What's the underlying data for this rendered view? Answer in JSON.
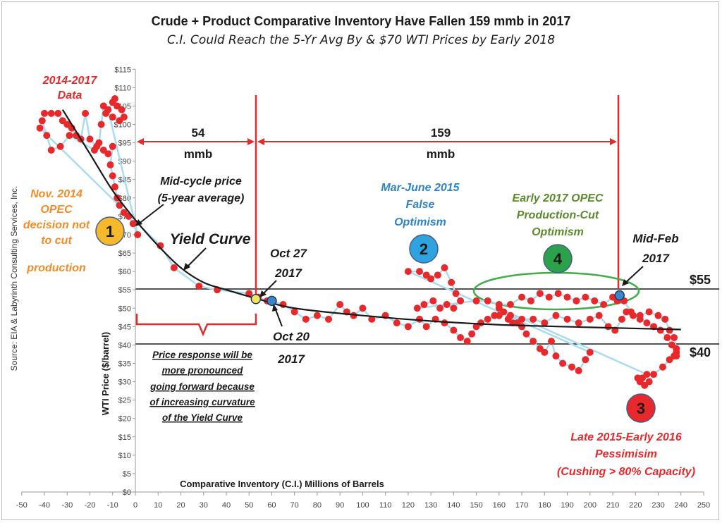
{
  "header": {
    "title": "Crude + Product Comparative Inventory Have Fallen 159 mmb in 2017",
    "subtitle": "C.I. Could Reach the 5-Yr Avg By & $70 WTI Prices by Early 2018"
  },
  "chart_data": {
    "type": "scatter",
    "title": "Crude + Product Comparative Inventory Have Fallen 159 mmb in 2017",
    "subtitle": "C.I. Could Reach the 5-Yr Avg By & $70 WTI Prices by Early 2018",
    "xlabel": "Comparative Inventory (C.I.) Millions of Barrels",
    "ylabel": "WTI Price ($/barrel)",
    "xlim": [
      -50,
      250
    ],
    "ylim": [
      0,
      115
    ],
    "x_ticks": [
      "-50",
      "-40",
      "-30",
      "-20",
      "-10",
      "0",
      "10",
      "20",
      "30",
      "40",
      "50",
      "60",
      "70",
      "80",
      "90",
      "100",
      "110",
      "120",
      "130",
      "140",
      "150",
      "160",
      "170",
      "180",
      "190",
      "200",
      "210",
      "220",
      "230",
      "240",
      "250"
    ],
    "y_ticks": [
      "$0",
      "$5",
      "$10",
      "$15",
      "$20",
      "$25",
      "$30",
      "$35",
      "$40",
      "$45",
      "$50",
      "$55",
      "$60",
      "$65",
      "$70",
      "$75",
      "$80",
      "$85",
      "$90",
      "$95",
      "$100",
      "$105",
      "$110",
      "$115"
    ],
    "grid": false,
    "source": "Source:  EIA & Labyrinth Consulting Services, Inc.",
    "colors": {
      "points": "#e8292b",
      "path": "#a9dcf0",
      "curve": "#1a1a1a",
      "marker_lines": "#e8292b",
      "ellipse": "#3fae4a",
      "blue_marker": "#3a86c8",
      "yellow_marker": "#f7e85a"
    },
    "series": [
      {
        "name": "2014-2017 Data",
        "points": [
          [
            -40,
            103
          ],
          [
            -37,
            103
          ],
          [
            -34,
            103
          ],
          [
            -32,
            101
          ],
          [
            -30,
            100
          ],
          [
            -28,
            99
          ],
          [
            -26,
            97
          ],
          [
            -24,
            96
          ],
          [
            -22,
            103
          ],
          [
            -20,
            96
          ],
          [
            -17,
            94
          ],
          [
            -14,
            93
          ],
          [
            -12,
            92
          ],
          [
            -10,
            94
          ],
          [
            -11,
            89
          ],
          [
            -10,
            86
          ],
          [
            -9,
            83
          ],
          [
            -8,
            80
          ],
          [
            -7,
            78
          ],
          [
            -5,
            76
          ],
          [
            -3,
            75
          ],
          [
            -1,
            73
          ],
          [
            1,
            70
          ],
          [
            -12,
            104
          ],
          [
            -10,
            106
          ],
          [
            -9,
            107
          ],
          [
            -8,
            105
          ],
          [
            -6,
            104
          ],
          [
            -5,
            102
          ],
          [
            -7,
            101
          ],
          [
            -10,
            102
          ],
          [
            -13,
            103
          ],
          [
            -14,
            105
          ],
          [
            -15,
            100
          ],
          [
            -16,
            95
          ],
          [
            -18,
            93
          ],
          [
            -29,
            97
          ],
          [
            -33,
            94
          ],
          [
            -37,
            93
          ],
          [
            -39,
            97
          ],
          [
            -41,
            101
          ],
          [
            -42,
            99
          ],
          [
            11,
            67
          ],
          [
            17,
            61
          ],
          [
            28,
            56
          ],
          [
            36,
            55
          ],
          [
            50,
            54
          ],
          [
            54,
            53
          ],
          [
            58,
            52
          ],
          [
            65,
            51
          ],
          [
            70,
            49
          ],
          [
            75,
            47
          ],
          [
            80,
            48
          ],
          [
            85,
            47
          ],
          [
            90,
            51
          ],
          [
            93,
            49
          ],
          [
            96,
            48
          ],
          [
            100,
            50
          ],
          [
            104,
            47
          ],
          [
            110,
            48
          ],
          [
            115,
            46
          ],
          [
            120,
            45
          ],
          [
            125,
            47
          ],
          [
            128,
            45
          ],
          [
            132,
            47
          ],
          [
            136,
            46
          ],
          [
            140,
            44
          ],
          [
            143,
            42
          ],
          [
            146,
            41
          ],
          [
            148,
            43
          ],
          [
            150,
            45
          ],
          [
            152,
            46
          ],
          [
            155,
            47
          ],
          [
            158,
            48
          ],
          [
            160,
            48
          ],
          [
            162,
            49
          ],
          [
            164,
            47
          ],
          [
            166,
            46
          ],
          [
            168,
            46
          ],
          [
            170,
            45
          ],
          [
            172,
            43
          ],
          [
            175,
            41
          ],
          [
            178,
            39
          ],
          [
            180,
            38
          ],
          [
            183,
            41
          ],
          [
            185,
            37
          ],
          [
            188,
            35
          ],
          [
            192,
            34
          ],
          [
            195,
            33
          ],
          [
            198,
            36
          ],
          [
            200,
            38
          ],
          [
            120,
            60
          ],
          [
            125,
            60
          ],
          [
            128,
            59
          ],
          [
            130,
            58
          ],
          [
            133,
            59
          ],
          [
            136,
            61
          ],
          [
            139,
            57
          ],
          [
            141,
            54
          ],
          [
            143,
            52
          ],
          [
            140,
            50
          ],
          [
            137,
            51
          ],
          [
            134,
            50
          ],
          [
            131,
            52
          ],
          [
            127,
            51
          ],
          [
            124,
            50
          ],
          [
            150,
            52
          ],
          [
            155,
            52
          ],
          [
            160,
            51
          ],
          [
            165,
            51
          ],
          [
            170,
            53
          ],
          [
            174,
            52
          ],
          [
            178,
            54
          ],
          [
            182,
            53
          ],
          [
            186,
            54
          ],
          [
            190,
            53
          ],
          [
            194,
            52
          ],
          [
            198,
            53
          ],
          [
            202,
            52
          ],
          [
            206,
            51
          ],
          [
            210,
            53
          ],
          [
            212,
            52
          ],
          [
            215,
            52
          ],
          [
            218,
            49
          ],
          [
            222,
            47
          ],
          [
            225,
            46
          ],
          [
            228,
            45
          ],
          [
            231,
            44
          ],
          [
            234,
            42
          ],
          [
            236,
            40
          ],
          [
            238,
            38
          ],
          [
            237,
            37
          ],
          [
            235,
            36
          ],
          [
            232,
            34
          ],
          [
            228,
            32
          ],
          [
            226,
            30
          ],
          [
            224,
            29
          ],
          [
            222,
            30
          ],
          [
            221,
            31
          ],
          [
            223,
            31
          ],
          [
            225,
            32
          ],
          [
            160,
            50
          ],
          [
            165,
            48
          ],
          [
            170,
            47
          ],
          [
            175,
            47
          ],
          [
            180,
            46
          ],
          [
            185,
            48
          ],
          [
            190,
            47
          ],
          [
            195,
            46
          ],
          [
            200,
            47
          ],
          [
            204,
            48
          ],
          [
            208,
            45
          ],
          [
            211,
            44
          ],
          [
            214,
            47
          ],
          [
            216,
            49
          ],
          [
            219,
            48
          ],
          [
            222,
            48
          ],
          [
            226,
            49
          ],
          [
            230,
            48
          ],
          [
            233,
            47
          ],
          [
            235,
            44
          ],
          [
            237,
            42
          ],
          [
            238,
            39
          ],
          [
            238,
            37
          ]
        ]
      }
    ],
    "curve": {
      "name": "Mid-cycle price (5-year average)",
      "label": "Yield Curve",
      "points": [
        [
          -32,
          104
        ],
        [
          -20,
          92
        ],
        [
          -10,
          82
        ],
        [
          0,
          74
        ],
        [
          10,
          67
        ],
        [
          20,
          61
        ],
        [
          30,
          57
        ],
        [
          40,
          55
        ],
        [
          54,
          52.5
        ],
        [
          70,
          50
        ],
        [
          100,
          48
        ],
        [
          130,
          46.5
        ],
        [
          160,
          45.5
        ],
        [
          200,
          44.8
        ],
        [
          240,
          44.2
        ]
      ]
    },
    "reference_lines": [
      {
        "y": 55,
        "label": "$55"
      },
      {
        "y": 40,
        "label": "$40"
      },
      {
        "x": 54
      },
      {
        "x": 213
      }
    ],
    "measurements": [
      {
        "from": 0,
        "to": 54,
        "value": "54",
        "unit": "mmb"
      },
      {
        "from": 54,
        "to": 213,
        "value": "159",
        "unit": "mmb"
      }
    ],
    "markers": [
      {
        "x": 53,
        "y": 52.5,
        "label": "Oct 27 2017",
        "color": "yellow"
      },
      {
        "x": 60,
        "y": 52,
        "label": "Oct 20 2017",
        "color": "blue"
      },
      {
        "x": 213,
        "y": 53.5,
        "label": "Mid-Feb 2017",
        "color": "blue"
      }
    ],
    "numbered_callouts": [
      {
        "number": "1",
        "text": "Nov. 2014 OPEC decision not to cut production"
      },
      {
        "number": "2",
        "text": "Mar-June 2015 False Optimism"
      },
      {
        "number": "3",
        "text": "Late 2015-Early 2016 Pessimisim (Cushing > 80% Capacity)"
      },
      {
        "number": "4",
        "text": "Early 2017 OPEC Production-Cut Optimism"
      }
    ],
    "annotations": {
      "data_label": "2014-2017 Data",
      "price_response": "Price response will be more pronounced going forward because of increasing curvature of the Yield Curve"
    }
  },
  "labels": {
    "data_l1": "2014-2017",
    "data_l2": "Data",
    "opec_l1": "Nov. 2014",
    "opec_l2": "OPEC",
    "opec_l3": "decision not",
    "opec_l4": "to cut",
    "opec_l5": "production",
    "midcycle_l1": "Mid-cycle price",
    "midcycle_l2": "(5-year average)",
    "yield": "Yield Curve",
    "oct27_l1": "Oct 27",
    "oct27_l2": "2017",
    "oct20_l1": "Oct 20",
    "oct20_l2": "2017",
    "mar_l1": "Mar-June 2015",
    "mar_l2": "False",
    "mar_l3": "Optimism",
    "early_l1": "Early 2017 OPEC",
    "early_l2": "Production-Cut",
    "early_l3": "Optimism",
    "midfeb_l1": "Mid-Feb",
    "midfeb_l2": "2017",
    "late_l1": "Late 2015-Early 2016",
    "late_l2": "Pessimisim",
    "late_l3": "(Cushing > 80% Capacity)",
    "resp_l1": "Price response will be",
    "resp_l2": "more pronounced",
    "resp_l3": "going forward because",
    "resp_l4": "of increasing curvature",
    "resp_l5": "of the Yield Curve",
    "m54": "54",
    "m159": "159",
    "mmb1": "mmb",
    "mmb2": "mmb",
    "p55": "$55",
    "p40": "$40",
    "n1": "1",
    "n2": "2",
    "n3": "3",
    "n4": "4"
  }
}
